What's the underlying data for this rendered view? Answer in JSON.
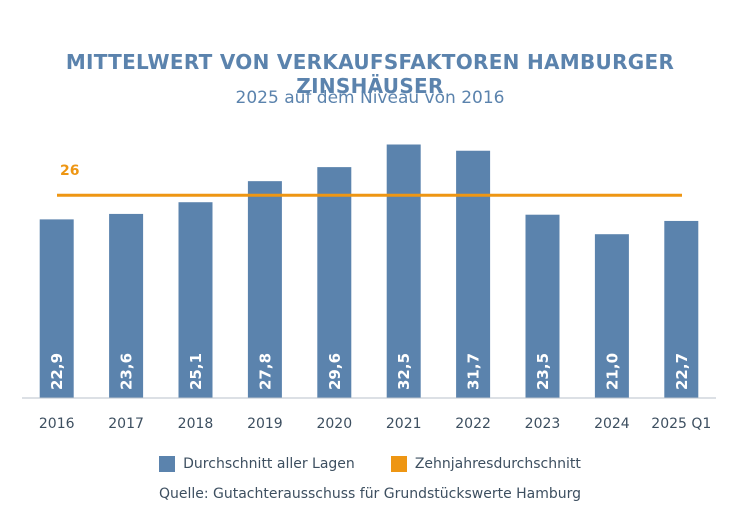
{
  "title": "MITTELWERT VON VERKAUFSFAKTOREN HAMBURGER ZINSHÄUSER",
  "subtitle": "2025 auf dem Niveau von 2016",
  "source": "Quelle: Gutachterausschuss für Grundstückswerte Hamburg",
  "colors": {
    "bar": "#5b83ad",
    "line": "#ee9613",
    "title": "#5b83ad",
    "axis": "#3d4f60"
  },
  "chart_data": {
    "type": "bar",
    "categories": [
      "2016",
      "2017",
      "2018",
      "2019",
      "2020",
      "2021",
      "2022",
      "2023",
      "2024",
      "2025 Q1"
    ],
    "series": [
      {
        "name": "Durchschnitt aller Lagen",
        "values": [
          22.9,
          23.6,
          25.1,
          27.8,
          29.6,
          32.5,
          31.7,
          23.5,
          21.0,
          22.7
        ],
        "labels": [
          "22,9",
          "23,6",
          "25,1",
          "27,8",
          "29,6",
          "32,5",
          "31,7",
          "23,5",
          "21,0",
          "22,7"
        ]
      }
    ],
    "reference_line": {
      "name": "Zehnjahresdurchschnitt",
      "value": 26,
      "label": "26"
    },
    "ylim": [
      0,
      34
    ],
    "title": "MITTELWERT VON VERKAUFSFAKTOREN HAMBURGER ZINSHÄUSER",
    "subtitle": "2025 auf dem Niveau von 2016",
    "xlabel": "",
    "ylabel": "",
    "legend_position": "bottom",
    "grid": false
  }
}
